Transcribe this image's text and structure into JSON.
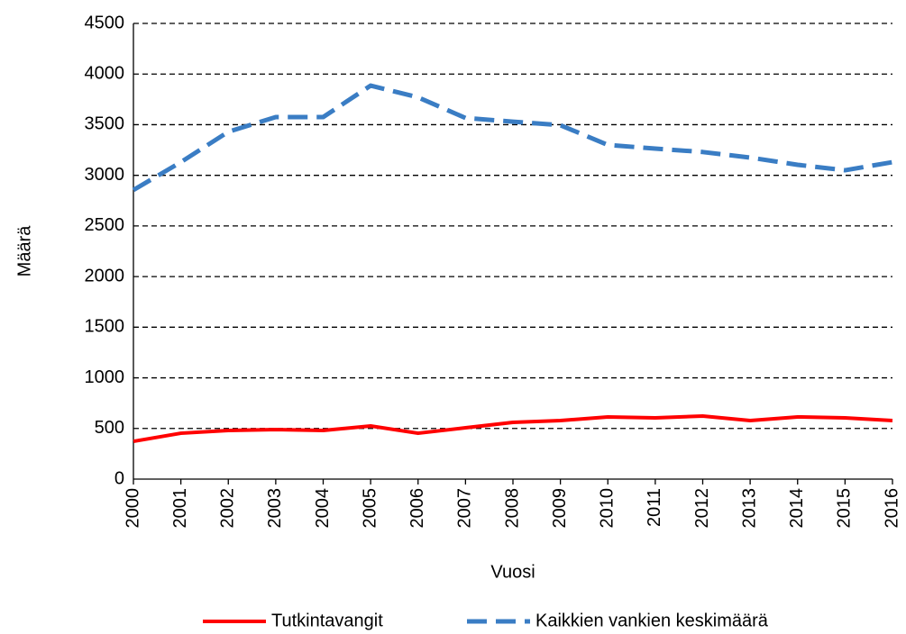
{
  "chart_data": {
    "type": "line",
    "x": [
      2000,
      2001,
      2002,
      2003,
      2004,
      2005,
      2006,
      2007,
      2008,
      2009,
      2010,
      2011,
      2012,
      2013,
      2014,
      2015,
      2016
    ],
    "series": [
      {
        "name": "Tutkintavangit",
        "color": "#ff0000",
        "dash": false,
        "values": [
          373,
          453,
          480,
          489,
          480,
          525,
          453,
          507,
          560,
          578,
          614,
          605,
          623,
          578,
          614,
          605,
          578
        ]
      },
      {
        "name": "Kaikkien vankien keskimäärä",
        "color": "#3a7dc4",
        "dash": true,
        "values": [
          2855,
          3130,
          3430,
          3575,
          3575,
          3886,
          3770,
          3566,
          3530,
          3495,
          3300,
          3264,
          3230,
          3175,
          3104,
          3050,
          3130
        ]
      }
    ],
    "xlabel": "Vuosi",
    "ylabel": "Määrä",
    "xlim": [
      2000,
      2016
    ],
    "xticks": [
      2000,
      2001,
      2002,
      2003,
      2004,
      2005,
      2006,
      2007,
      2008,
      2009,
      2010,
      2011,
      2012,
      2013,
      2014,
      2015,
      2016
    ],
    "ylim": [
      0,
      4500
    ],
    "yticks": [
      0,
      500,
      1000,
      1500,
      2000,
      2500,
      3000,
      3500,
      4000,
      4500
    ],
    "grid": true,
    "legend": "bottom"
  }
}
